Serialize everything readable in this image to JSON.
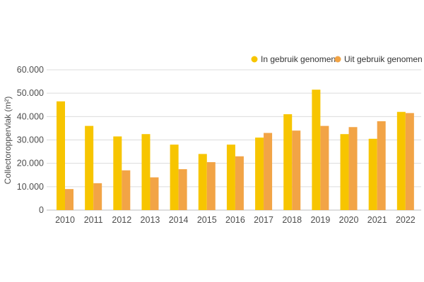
{
  "chart_data": {
    "type": "bar",
    "categories": [
      "2010",
      "2011",
      "2012",
      "2013",
      "2014",
      "2015",
      "2016",
      "2017",
      "2018",
      "2019",
      "2020",
      "2021",
      "2022"
    ],
    "series": [
      {
        "name": "In gebruik genomen",
        "color": "#f7c500",
        "values": [
          46500,
          36000,
          31500,
          32500,
          28000,
          24000,
          28000,
          31000,
          41000,
          51500,
          32500,
          30500,
          42000
        ]
      },
      {
        "name": "Uit gebruik genomen",
        "color": "#f2a446",
        "values": [
          9000,
          11500,
          17000,
          14000,
          17500,
          20500,
          23000,
          33000,
          34000,
          36000,
          35500,
          38000,
          41500
        ]
      }
    ],
    "ylabel": "Collectoroppervlak (m²)",
    "ylim": [
      0,
      60000
    ],
    "yticks": [
      0,
      10000,
      20000,
      30000,
      40000,
      50000,
      60000
    ],
    "ytick_labels": [
      "0",
      "10.000",
      "20.000",
      "30.000",
      "40.000",
      "50.000",
      "60.000"
    ],
    "grid": true,
    "legend_position": "top-right"
  }
}
